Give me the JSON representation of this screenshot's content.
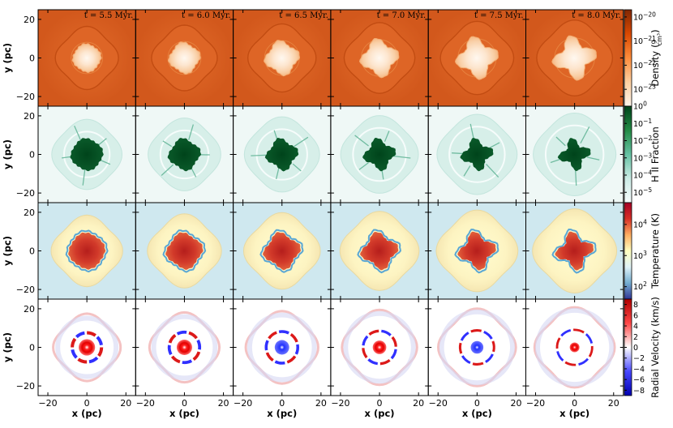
{
  "chart_data": {
    "type": "heatmap",
    "times": [
      "t = 5.5 Myr.",
      "t = 6.0 Myr.",
      "t = 6.5 Myr.",
      "t = 7.0 Myr.",
      "t = 7.5 Myr.",
      "t = 8.0 Myr."
    ],
    "xlabel": "x  (pc)",
    "ylabel": "y  (pc)",
    "xlim": [
      -25,
      25
    ],
    "ylim": [
      -25,
      25
    ],
    "xticks": [
      "−20",
      "0",
      "20"
    ],
    "yticks": [
      "20",
      "0",
      "−20"
    ],
    "rows": [
      {
        "quantity": "density",
        "colorbar_label": "Density",
        "colorbar_unit_num": "g",
        "colorbar_unit_den": "cm³",
        "colorbar_log": true,
        "colorbar_ticks": [
          {
            "base": "10",
            "exp": "−20",
            "v": -20
          },
          {
            "base": "10",
            "exp": "−21",
            "v": -21
          },
          {
            "base": "10",
            "exp": "−22",
            "v": -22
          },
          {
            "base": "10",
            "exp": "−23",
            "v": -23
          }
        ],
        "range": [
          -23.7,
          -19.7
        ],
        "colors": [
          "#fff5eb",
          "#fdd0a2",
          "#fd8d3c",
          "#d94801",
          "#7f2704"
        ],
        "bubble_radius_pc": [
          7,
          7.5,
          8,
          8.5,
          9,
          9
        ]
      },
      {
        "quantity": "hii_fraction",
        "colorbar_label": "H II Fraction",
        "colorbar_log": true,
        "colorbar_ticks": [
          {
            "base": "10",
            "exp": "0",
            "v": 0
          },
          {
            "base": "10",
            "exp": "−1",
            "v": -1
          },
          {
            "base": "10",
            "exp": "−2",
            "v": -2
          },
          {
            "base": "10",
            "exp": "−3",
            "v": -3
          },
          {
            "base": "10",
            "exp": "−4",
            "v": -4
          },
          {
            "base": "10",
            "exp": "−5",
            "v": -5
          }
        ],
        "range": [
          -5.6,
          0
        ],
        "colors": [
          "#f7fcfd",
          "#ccece6",
          "#66c2a4",
          "#238b45",
          "#00441b"
        ]
      },
      {
        "quantity": "temperature",
        "colorbar_label": "Temperature  (K)",
        "colorbar_log": true,
        "colorbar_ticks": [
          {
            "base": "10",
            "exp": "4",
            "v": 4
          },
          {
            "base": "10",
            "exp": "3",
            "v": 3
          },
          {
            "base": "10",
            "exp": "2",
            "v": 2
          }
        ],
        "range": [
          1.6,
          4.7
        ],
        "colors": [
          "#313695",
          "#74add1",
          "#e0f3f8",
          "#ffffbf",
          "#fdae61",
          "#d73027",
          "#a50026"
        ]
      },
      {
        "quantity": "radial_velocity",
        "colorbar_label": "Radial Velocity  (km/s)",
        "colorbar_log": false,
        "colorbar_ticks": [
          {
            "base": "8",
            "v": 8
          },
          {
            "base": "6",
            "v": 6
          },
          {
            "base": "4",
            "v": 4
          },
          {
            "base": "2",
            "v": 2
          },
          {
            "base": "0",
            "v": 0
          },
          {
            "base": "−2",
            "v": -2
          },
          {
            "base": "−4",
            "v": -4
          },
          {
            "base": "−6",
            "v": -6
          },
          {
            "base": "−8",
            "v": -8
          }
        ],
        "range": [
          -9,
          9
        ],
        "colors": [
          "#0000b0",
          "#4848ff",
          "#ffffff",
          "#ff4848",
          "#b00000"
        ]
      }
    ]
  }
}
